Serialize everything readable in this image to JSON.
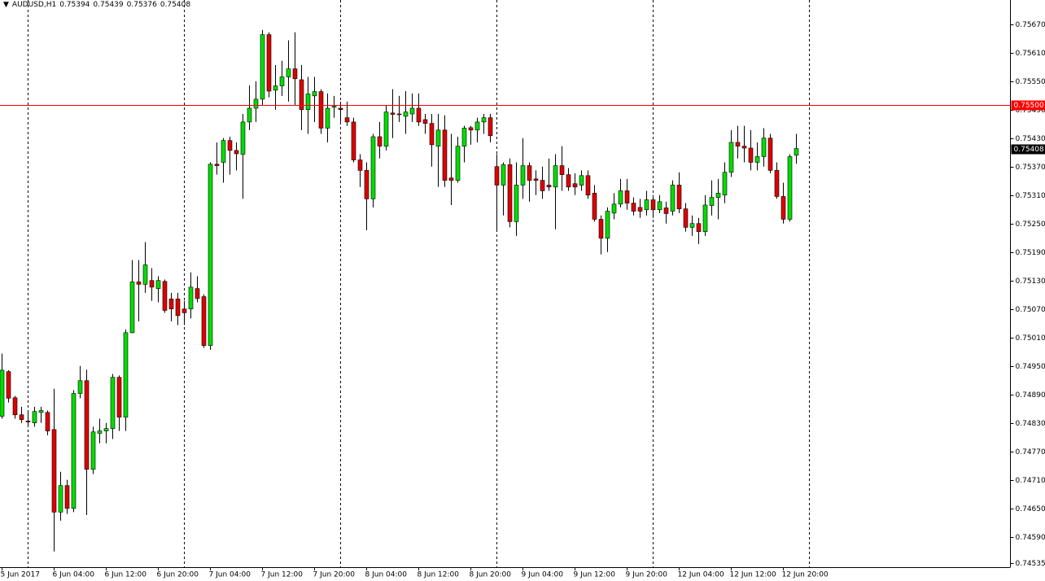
{
  "chart_data": {
    "type": "candlestick",
    "title": "AUDUSD,H1",
    "categories": [
      "5 Jun 2017",
      null,
      null,
      null,
      null,
      null,
      null,
      null,
      "6 Jun 04:00",
      null,
      null,
      null,
      null,
      null,
      null,
      null,
      "6 Jun 12:00",
      null,
      null,
      null,
      null,
      null,
      null,
      null,
      "6 Jun 20:00",
      null,
      null,
      null,
      null,
      null,
      null,
      null,
      "7 Jun 04:00",
      null,
      null,
      null,
      null,
      null,
      null,
      null,
      "7 Jun 12:00",
      null,
      null,
      null,
      null,
      null,
      null,
      null,
      "7 Jun 20:00",
      null,
      null,
      null,
      null,
      null,
      null,
      null,
      "8 Jun 04:00",
      null,
      null,
      null,
      null,
      null,
      null,
      null,
      "8 Jun 12:00",
      null,
      null,
      null,
      null,
      null,
      null,
      null,
      "8 Jun 20:00",
      null,
      null,
      null,
      null,
      null,
      null,
      null,
      "9 Jun 04:00",
      null,
      null,
      null,
      null,
      null,
      null,
      null,
      "9 Jun 12:00",
      null,
      null,
      null,
      null,
      null,
      null,
      null,
      "9 Jun 20:00",
      null,
      null,
      null,
      null,
      null,
      null,
      null,
      "12 Jun 04:00",
      null,
      null,
      null,
      null,
      null,
      null,
      null,
      "12 Jun 12:00",
      null,
      null,
      null,
      null,
      null,
      null,
      null,
      "12 Jun 20:00",
      null,
      null
    ],
    "open": [
      0.74844,
      0.74938,
      0.74883,
      0.74847,
      0.74834,
      0.7483,
      0.74852,
      0.74852,
      0.74816,
      0.74642,
      0.74698,
      0.7465,
      0.74892,
      0.74919,
      0.74732,
      0.74808,
      0.74813,
      0.74818,
      0.74926,
      0.74842,
      0.7502,
      0.75127,
      0.75122,
      0.7513,
      0.75113,
      0.75128,
      0.75091,
      0.75091,
      0.7507,
      0.7507,
      0.75113,
      0.75096,
      0.74993,
      0.75375,
      0.75379,
      0.75425,
      0.75404,
      0.75396,
      0.75464,
      0.75493,
      0.75512,
      0.75648,
      0.75531,
      0.7554,
      0.75559,
      0.75576,
      0.75553,
      0.7549,
      0.75519,
      0.75528,
      0.75451,
      0.75495,
      0.75493,
      0.75473,
      0.75464,
      0.75384,
      0.75362,
      0.75302,
      0.75433,
      0.75413,
      0.75483,
      0.75481,
      0.75476,
      0.75481,
      0.75493,
      0.75469,
      0.75461,
      0.75413,
      0.75447,
      0.75346,
      0.75341,
      0.75413,
      0.75452,
      0.75447,
      0.75464,
      0.75473,
      0.7537,
      0.75331,
      0.75374,
      0.75254,
      0.75331,
      0.75372,
      0.75344,
      0.75341,
      0.75331,
      0.75327,
      0.75372,
      0.75353,
      0.75334,
      0.75331,
      0.75351,
      0.75314,
      0.75259,
      0.75219,
      0.75272,
      0.75291,
      0.75319,
      0.75293,
      0.75284,
      0.75279,
      0.753,
      0.75279,
      0.75283,
      0.75276,
      0.75331,
      0.75281,
      0.75242,
      0.7525,
      0.75233,
      0.75288,
      0.75305,
      0.7531,
      0.75358,
      0.75421,
      0.75413,
      0.75409,
      0.75379,
      0.75391,
      0.7543,
      0.75362,
      0.75307,
      0.75259,
      0.75394
    ],
    "high": [
      0.74976,
      0.74941,
      0.74887,
      0.74864,
      0.74856,
      0.74864,
      0.74864,
      0.74856,
      0.74902,
      0.74727,
      0.7471,
      0.74899,
      0.7495,
      0.74942,
      0.74822,
      0.74839,
      0.7483,
      0.74933,
      0.7493,
      0.75027,
      0.75173,
      0.75173,
      0.75211,
      0.75156,
      0.75139,
      0.75132,
      0.75104,
      0.75104,
      0.75087,
      0.75147,
      0.75139,
      0.75101,
      0.75379,
      0.75421,
      0.7543,
      0.75433,
      0.75421,
      0.75481,
      0.75541,
      0.7555,
      0.75658,
      0.75653,
      0.75584,
      0.75593,
      0.75636,
      0.75653,
      0.75584,
      0.75559,
      0.75559,
      0.75533,
      0.75524,
      0.75519,
      0.75507,
      0.75507,
      0.75473,
      0.75396,
      0.75379,
      0.75439,
      0.75464,
      0.75499,
      0.75533,
      0.75519,
      0.75529,
      0.75524,
      0.75524,
      0.75481,
      0.75481,
      0.75481,
      0.75478,
      0.75439,
      0.75433,
      0.75456,
      0.75456,
      0.75473,
      0.75481,
      0.75481,
      0.75396,
      0.75379,
      0.75387,
      0.75379,
      0.7543,
      0.75379,
      0.75362,
      0.7537,
      0.75387,
      0.75396,
      0.75413,
      0.75367,
      0.75356,
      0.75362,
      0.75362,
      0.75331,
      0.75267,
      0.75284,
      0.75314,
      0.75344,
      0.75344,
      0.75305,
      0.75302,
      0.75319,
      0.7531,
      0.7531,
      0.75296,
      0.75341,
      0.75358,
      0.75293,
      0.75267,
      0.75262,
      0.7531,
      0.75341,
      0.75344,
      0.75379,
      0.75447,
      0.75456,
      0.75456,
      0.75447,
      0.75421,
      0.75451,
      0.75439,
      0.75379,
      0.75336,
      0.75396,
      0.75439
    ],
    "low": [
      0.74839,
      0.74873,
      0.74839,
      0.7483,
      0.74822,
      0.74822,
      0.7483,
      0.74804,
      0.74559,
      0.74624,
      0.74638,
      0.74642,
      0.74882,
      0.74636,
      0.74722,
      0.74787,
      0.74787,
      0.74796,
      0.74813,
      0.74813,
      0.75019,
      0.75044,
      0.75104,
      0.75087,
      0.75084,
      0.75062,
      0.75044,
      0.75036,
      0.75036,
      0.7505,
      0.75084,
      0.74988,
      0.74984,
      0.75353,
      0.75336,
      0.75353,
      0.75362,
      0.75302,
      0.75447,
      0.75464,
      0.75499,
      0.75516,
      0.7549,
      0.75519,
      0.75507,
      0.75499,
      0.75447,
      0.75439,
      0.75464,
      0.75439,
      0.75421,
      0.75473,
      0.75464,
      0.75456,
      0.75379,
      0.75327,
      0.75236,
      0.75284,
      0.75387,
      0.75404,
      0.7543,
      0.75464,
      0.75439,
      0.75464,
      0.75456,
      0.75439,
      0.7537,
      0.75327,
      0.75327,
      0.75289,
      0.75336,
      0.75379,
      0.75416,
      0.75421,
      0.75439,
      0.75421,
      0.75233,
      0.75267,
      0.75242,
      0.75224,
      0.75302,
      0.75296,
      0.7531,
      0.75302,
      0.75319,
      0.75238,
      0.75319,
      0.75319,
      0.7531,
      0.75319,
      0.75302,
      0.75254,
      0.75185,
      0.7519,
      0.75259,
      0.75284,
      0.75279,
      0.75267,
      0.75262,
      0.75267,
      0.75262,
      0.75272,
      0.7525,
      0.75267,
      0.75272,
      0.75233,
      0.75224,
      0.75207,
      0.75224,
      0.75267,
      0.75259,
      0.75293,
      0.75348,
      0.75387,
      0.75379,
      0.75362,
      0.75362,
      0.7537,
      0.75356,
      0.75302,
      0.7525,
      0.75254,
      0.75376
    ],
    "close": [
      0.74941,
      0.74882,
      0.74847,
      0.74837,
      0.74832,
      0.74854,
      0.74856,
      0.74813,
      0.74642,
      0.74698,
      0.7465,
      0.74892,
      0.74919,
      0.74732,
      0.74811,
      0.74813,
      0.74818,
      0.74926,
      0.74842,
      0.7502,
      0.75127,
      0.75122,
      0.75163,
      0.75116,
      0.7513,
      0.75067,
      0.7507,
      0.75056,
      0.75062,
      0.75116,
      0.75092,
      0.74993,
      0.75375,
      0.75372,
      0.75425,
      0.75404,
      0.75397,
      0.75464,
      0.75493,
      0.75512,
      0.75648,
      0.75529,
      0.7554,
      0.75559,
      0.75576,
      0.75555,
      0.7549,
      0.75523,
      0.75528,
      0.75451,
      0.75493,
      0.75497,
      0.7549,
      0.75464,
      0.75384,
      0.75362,
      0.75302,
      0.75433,
      0.75413,
      0.75485,
      0.7548,
      0.7548,
      0.75485,
      0.75493,
      0.75464,
      0.75461,
      0.75416,
      0.75447,
      0.75341,
      0.75341,
      0.75413,
      0.75451,
      0.75447,
      0.75464,
      0.75473,
      0.75435,
      0.75331,
      0.75374,
      0.75254,
      0.75331,
      0.75372,
      0.75341,
      0.75341,
      0.75319,
      0.75327,
      0.75372,
      0.75353,
      0.75327,
      0.75327,
      0.75351,
      0.7531,
      0.75259,
      0.75219,
      0.75276,
      0.75291,
      0.75319,
      0.75293,
      0.75276,
      0.75276,
      0.753,
      0.75279,
      0.75296,
      0.75271,
      0.75331,
      0.75281,
      0.75242,
      0.7525,
      0.75233,
      0.75289,
      0.75305,
      0.75314,
      0.75358,
      0.75421,
      0.75413,
      0.75409,
      0.75379,
      0.75391,
      0.7543,
      0.75362,
      0.75307,
      0.75259,
      0.75391,
      0.75408
    ],
    "up_color": "#00dd00",
    "down_color": "#dd0000",
    "ylim": [
      0.74526,
      0.75721
    ],
    "yticks": [
      {
        "value": 0.7567,
        "label": "0.75670"
      },
      {
        "value": 0.7561,
        "label": "0.75610"
      },
      {
        "value": 0.7555,
        "label": "0.75550"
      },
      {
        "value": 0.7549,
        "label": "0.75490"
      },
      {
        "value": 0.7543,
        "label": "0.75430"
      },
      {
        "value": 0.7537,
        "label": "0.75370"
      },
      {
        "value": 0.7531,
        "label": "0.75310"
      },
      {
        "value": 0.7525,
        "label": "0.75250"
      },
      {
        "value": 0.7519,
        "label": "0.75190"
      },
      {
        "value": 0.7513,
        "label": "0.75130"
      },
      {
        "value": 0.7507,
        "label": "0.75070"
      },
      {
        "value": 0.7501,
        "label": "0.75010"
      },
      {
        "value": 0.7495,
        "label": "0.74950"
      },
      {
        "value": 0.7489,
        "label": "0.74890"
      },
      {
        "value": 0.7483,
        "label": "0.74830"
      },
      {
        "value": 0.7477,
        "label": "0.74770"
      },
      {
        "value": 0.7471,
        "label": "0.74710"
      },
      {
        "value": 0.7465,
        "label": "0.74650"
      },
      {
        "value": 0.7459,
        "label": "0.74590"
      },
      0.74535
    ],
    "hline": {
      "value": 0.755,
      "label": "0.75500",
      "color": "#ff0000"
    },
    "grid": false
  }
}
